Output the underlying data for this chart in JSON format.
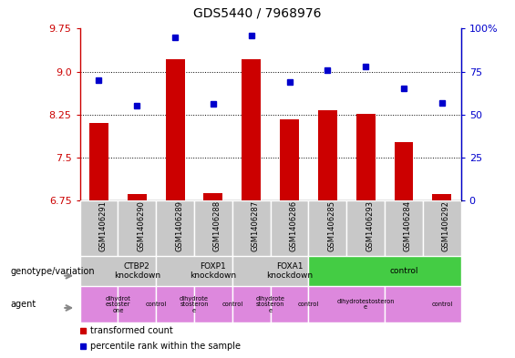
{
  "title": "GDS5440 / 7968976",
  "samples": [
    "GSM1406291",
    "GSM1406290",
    "GSM1406289",
    "GSM1406288",
    "GSM1406287",
    "GSM1406286",
    "GSM1406285",
    "GSM1406293",
    "GSM1406284",
    "GSM1406292"
  ],
  "transformed_count": [
    8.1,
    6.87,
    9.22,
    6.88,
    9.22,
    8.16,
    8.32,
    8.27,
    7.77,
    6.87
  ],
  "percentile_rank": [
    70,
    55,
    95,
    56,
    96,
    69,
    76,
    78,
    65,
    57
  ],
  "ylim_left": [
    6.75,
    9.75
  ],
  "ylim_right": [
    0,
    100
  ],
  "yticks_left": [
    6.75,
    7.5,
    8.25,
    9.0,
    9.75
  ],
  "yticks_right": [
    0,
    25,
    50,
    75,
    100
  ],
  "bar_color": "#cc0000",
  "dot_color": "#0000cc",
  "dot_marker": "s",
  "genotype_groups": [
    {
      "label": "CTBP2\nknockdown",
      "start": 0,
      "end": 2,
      "color": "#c8c8c8"
    },
    {
      "label": "FOXP1\nknockdown",
      "start": 2,
      "end": 4,
      "color": "#c8c8c8"
    },
    {
      "label": "FOXA1\nknockdown",
      "start": 4,
      "end": 6,
      "color": "#c8c8c8"
    },
    {
      "label": "control",
      "start": 6,
      "end": 10,
      "color": "#44cc44"
    }
  ],
  "agent_groups": [
    {
      "label": "dihydrot\nestoster\none",
      "start": 0,
      "end": 1,
      "color": "#dd88dd"
    },
    {
      "label": "control",
      "start": 1,
      "end": 2,
      "color": "#dd88dd"
    },
    {
      "label": "dihydrote\nstosteron\ne",
      "start": 2,
      "end": 3,
      "color": "#dd88dd"
    },
    {
      "label": "control",
      "start": 3,
      "end": 4,
      "color": "#dd88dd"
    },
    {
      "label": "dihydrote\nstosteron\ne",
      "start": 4,
      "end": 5,
      "color": "#dd88dd"
    },
    {
      "label": "control",
      "start": 5,
      "end": 6,
      "color": "#dd88dd"
    },
    {
      "label": "dihydrotestosteron\ne",
      "start": 6,
      "end": 8,
      "color": "#dd88dd"
    },
    {
      "label": "control",
      "start": 8,
      "end": 10,
      "color": "#dd88dd"
    }
  ],
  "left_axis_color": "#cc0000",
  "right_axis_color": "#0000cc",
  "sample_bg_color": "#c8c8c8",
  "legend_bar_color": "#cc0000",
  "legend_dot_color": "#0000cc"
}
